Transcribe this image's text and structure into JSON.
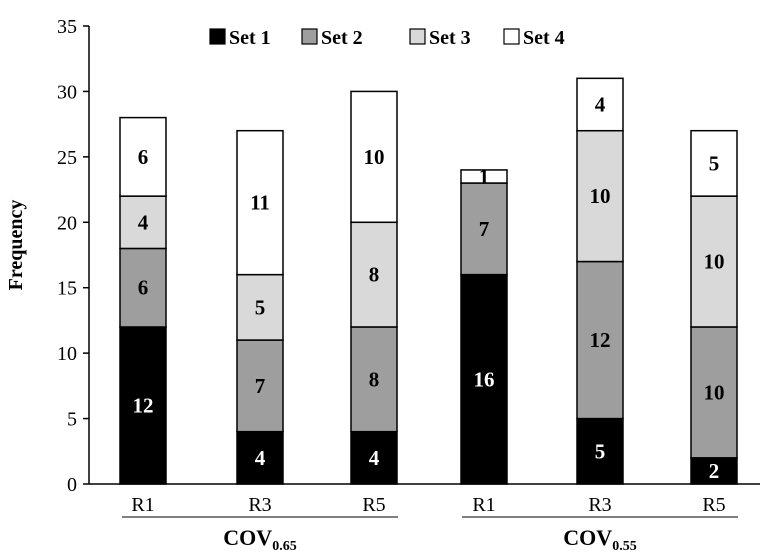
{
  "chart_data": {
    "type": "bar",
    "stacked": true,
    "ylabel": "Frequency",
    "xlabel": "",
    "ylim": [
      0,
      35
    ],
    "yticks": [
      0,
      5,
      10,
      15,
      20,
      25,
      30,
      35
    ],
    "grid": false,
    "legend_position": "top",
    "categories": [
      "R1",
      "R3",
      "R5",
      "R1",
      "R3",
      "R5"
    ],
    "groups": [
      {
        "label_main": "COV",
        "label_sub": "0.65",
        "categories": [
          0,
          1,
          2
        ]
      },
      {
        "label_main": "COV",
        "label_sub": "0.55",
        "categories": [
          3,
          4,
          5
        ]
      }
    ],
    "series": [
      {
        "name": "Set 1",
        "color": "#000000",
        "label_color": "#ffffff",
        "values": [
          12,
          4,
          4,
          16,
          5,
          2
        ]
      },
      {
        "name": "Set 2",
        "color": "#9e9e9e",
        "label_color": "#000000",
        "values": [
          6,
          7,
          8,
          7,
          12,
          10
        ]
      },
      {
        "name": "Set 3",
        "color": "#d9d9d9",
        "label_color": "#000000",
        "values": [
          4,
          5,
          8,
          0,
          10,
          10
        ]
      },
      {
        "name": "Set 4",
        "color": "#ffffff",
        "label_color": "#000000",
        "values": [
          6,
          11,
          10,
          1,
          4,
          5
        ]
      }
    ]
  }
}
